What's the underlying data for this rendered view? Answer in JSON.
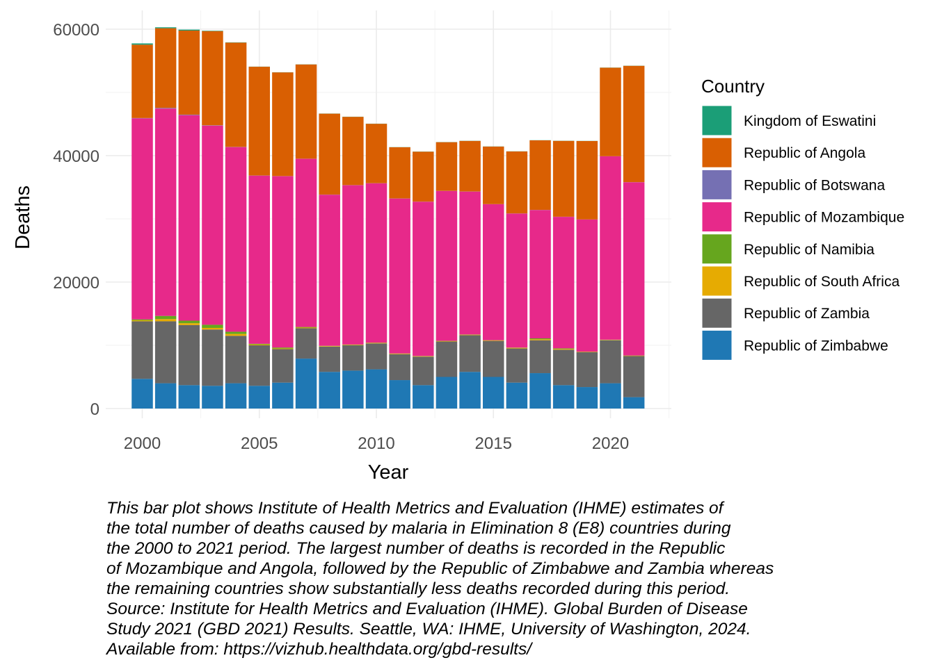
{
  "chart_data": {
    "type": "bar",
    "stacked": true,
    "title": "",
    "xlabel": "Year",
    "ylabel": "Deaths",
    "xlim": [
      1999.0,
      2022.3
    ],
    "ylim": [
      0,
      60000
    ],
    "y_ticks": [
      0,
      20000,
      40000,
      60000
    ],
    "y_tick_labels": [
      "0",
      "20000",
      "40000",
      "60000"
    ],
    "x_ticks": [
      2000,
      2005,
      2010,
      2015,
      2020
    ],
    "x_tick_labels": [
      "2000",
      "2005",
      "2010",
      "2015",
      "2020"
    ],
    "grid": true,
    "legend_title": "Country",
    "legend_position": "right",
    "categories": [
      2000,
      2001,
      2002,
      2003,
      2004,
      2005,
      2006,
      2007,
      2008,
      2009,
      2010,
      2011,
      2012,
      2013,
      2014,
      2015,
      2016,
      2017,
      2018,
      2019,
      2020,
      2021
    ],
    "series": [
      {
        "name": "Republic of Zimbabwe",
        "color": "#1f78b4",
        "values": [
          4700,
          4000,
          3700,
          3600,
          4000,
          3600,
          4100,
          7900,
          5800,
          6000,
          6200,
          4500,
          3700,
          5000,
          5800,
          5000,
          4100,
          5600,
          3700,
          3400,
          4000,
          1800
        ]
      },
      {
        "name": "Republic of Zambia",
        "color": "#666666",
        "values": [
          9100,
          9800,
          9500,
          8900,
          7500,
          6400,
          5300,
          4800,
          4000,
          4000,
          4100,
          4100,
          4500,
          5600,
          5800,
          5700,
          5400,
          5200,
          5600,
          5500,
          6800,
          6500
        ]
      },
      {
        "name": "Republic of South Africa",
        "color": "#e6ab02",
        "values": [
          150,
          350,
          300,
          250,
          300,
          120,
          100,
          100,
          80,
          80,
          80,
          80,
          80,
          80,
          80,
          80,
          100,
          150,
          120,
          60,
          60,
          60
        ]
      },
      {
        "name": "Republic of Namibia",
        "color": "#66a61e",
        "values": [
          150,
          500,
          400,
          500,
          350,
          120,
          150,
          100,
          40,
          40,
          40,
          30,
          30,
          30,
          30,
          30,
          40,
          150,
          100,
          30,
          30,
          30
        ]
      },
      {
        "name": "Republic of Mozambique",
        "color": "#e7298a",
        "values": [
          31800,
          32800,
          32500,
          31500,
          29200,
          26600,
          27100,
          26600,
          23900,
          25200,
          25200,
          24500,
          24400,
          23700,
          22600,
          21500,
          21200,
          20300,
          20800,
          20900,
          29000,
          27400
        ]
      },
      {
        "name": "Republic of Botswana",
        "color": "#7570b3",
        "values": [
          50,
          100,
          80,
          50,
          30,
          20,
          20,
          20,
          20,
          20,
          20,
          20,
          20,
          20,
          20,
          20,
          20,
          20,
          20,
          20,
          20,
          20
        ]
      },
      {
        "name": "Republic of Angola",
        "color": "#d95f02",
        "values": [
          11600,
          12600,
          13300,
          14900,
          16500,
          17200,
          16400,
          14900,
          12800,
          10800,
          9400,
          8100,
          7900,
          7700,
          8000,
          9100,
          9800,
          11000,
          12000,
          12400,
          14000,
          18400
        ]
      },
      {
        "name": "Kingdom of Eswatini",
        "color": "#1b9e77",
        "values": [
          200,
          150,
          150,
          60,
          40,
          20,
          20,
          20,
          20,
          20,
          20,
          20,
          20,
          20,
          20,
          20,
          20,
          20,
          20,
          20,
          20,
          20
        ]
      }
    ],
    "legend_order": [
      "Kingdom of Eswatini",
      "Republic of Angola",
      "Republic of Botswana",
      "Republic of Mozambique",
      "Republic of Namibia",
      "Republic of South Africa",
      "Republic of Zambia",
      "Republic of Zimbabwe"
    ]
  },
  "caption_lines": [
    "This bar plot shows Institute of Health Metrics and Evaluation (IHME) estimates of",
    "the total number of deaths caused by malaria in Elimination 8 (E8) countries during",
    "the 2000 to 2021 period. The largest number of deaths is recorded in the Republic",
    "of Mozambique and Angola, followed by the Republic of Zimbabwe and Zambia whereas",
    "the remaining countries show substantially less deaths recorded during this period.",
    "Source: Institute for Health Metrics and Evaluation (IHME). Global Burden of Disease",
    "Study 2021 (GBD 2021) Results. Seattle, WA: IHME, University of Washington, 2024.",
    "Available from: https://vizhub.healthdata.org/gbd-results/"
  ]
}
